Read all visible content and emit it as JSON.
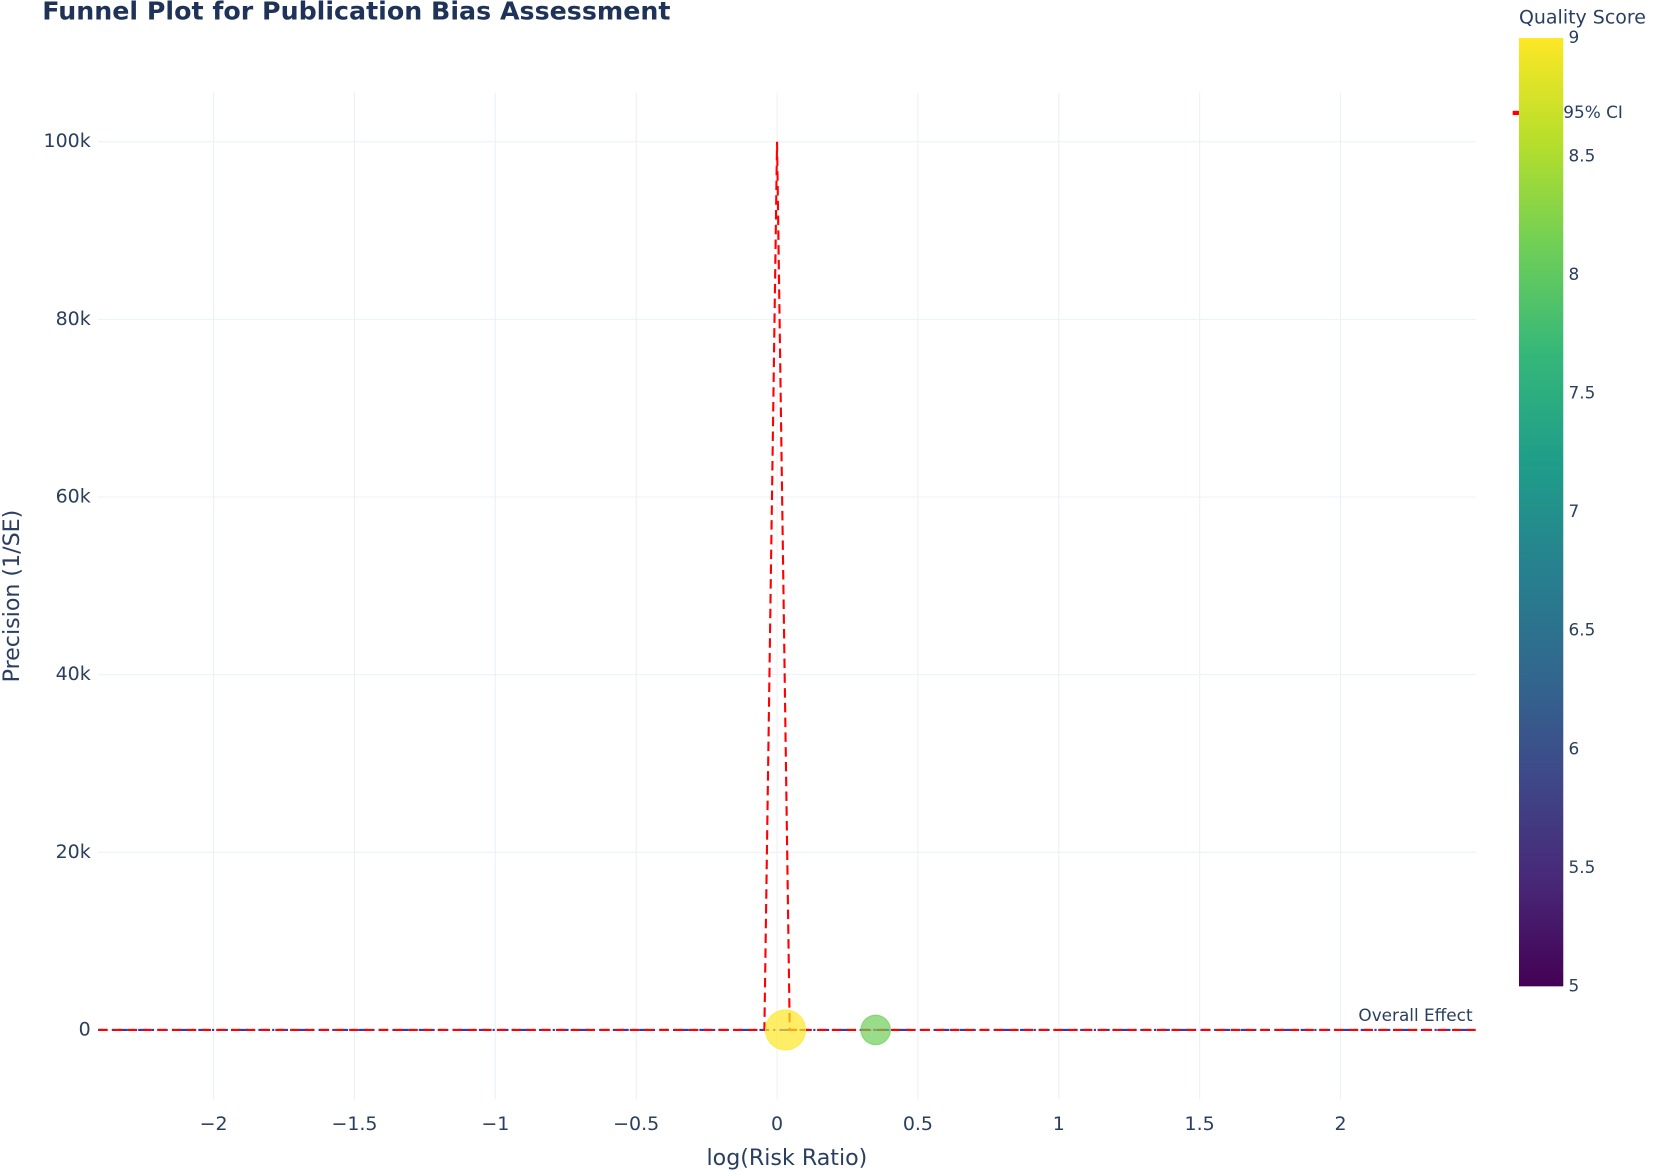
{
  "chart_data": {
    "type": "funnel",
    "title": "Funnel Plot for Publication Bias Assessment",
    "xlabel": "log(Risk Ratio)",
    "ylabel": "Precision (1/SE)",
    "xlim": [
      -2.41,
      2.48
    ],
    "ylim": [
      -7800,
      105500
    ],
    "xticks": [
      {
        "value": -2,
        "label": "−2"
      },
      {
        "value": -1.5,
        "label": "−1.5"
      },
      {
        "value": -1,
        "label": "−1"
      },
      {
        "value": -0.5,
        "label": "−0.5"
      },
      0,
      0.5,
      1,
      1.5,
      2
    ],
    "yticks": [
      0,
      {
        "value": 20000,
        "label": "20k"
      },
      {
        "value": 40000,
        "label": "40k"
      },
      {
        "value": 60000,
        "label": "60k"
      },
      {
        "value": 80000,
        "label": "80k"
      },
      {
        "value": 100000,
        "label": "100k"
      }
    ],
    "grid": true,
    "series": [
      {
        "name": "95% CI",
        "type": "line",
        "color": "#ff0000",
        "dash": "dash",
        "x": [
          -2.41,
          -0.045,
          0,
          null,
          0,
          0.045,
          2.48
        ],
        "y": [
          0,
          0,
          100000,
          null,
          100000,
          0,
          0
        ]
      },
      {
        "type": "scatter",
        "x": [
          0.03,
          0.35
        ],
        "y": [
          0,
          0
        ],
        "sizes": [
          38,
          28
        ],
        "quality": [
          9,
          8.1
        ],
        "opacity": 0.7
      }
    ],
    "overall_effect": {
      "value": 0,
      "label": "Overall Effect",
      "color": "#1f3fd0"
    },
    "colorbar": {
      "title": "Quality Score",
      "lim": [
        5,
        9
      ],
      "ticks": [
        5,
        5.5,
        6,
        6.5,
        7,
        7.5,
        8,
        8.5,
        9
      ],
      "colorscale": [
        "#440154",
        "#482878",
        "#3e4989",
        "#31688e",
        "#26828e",
        "#1f9e89",
        "#35b779",
        "#6ece58",
        "#b5de2b",
        "#fde725"
      ]
    },
    "legend": "top-right"
  }
}
